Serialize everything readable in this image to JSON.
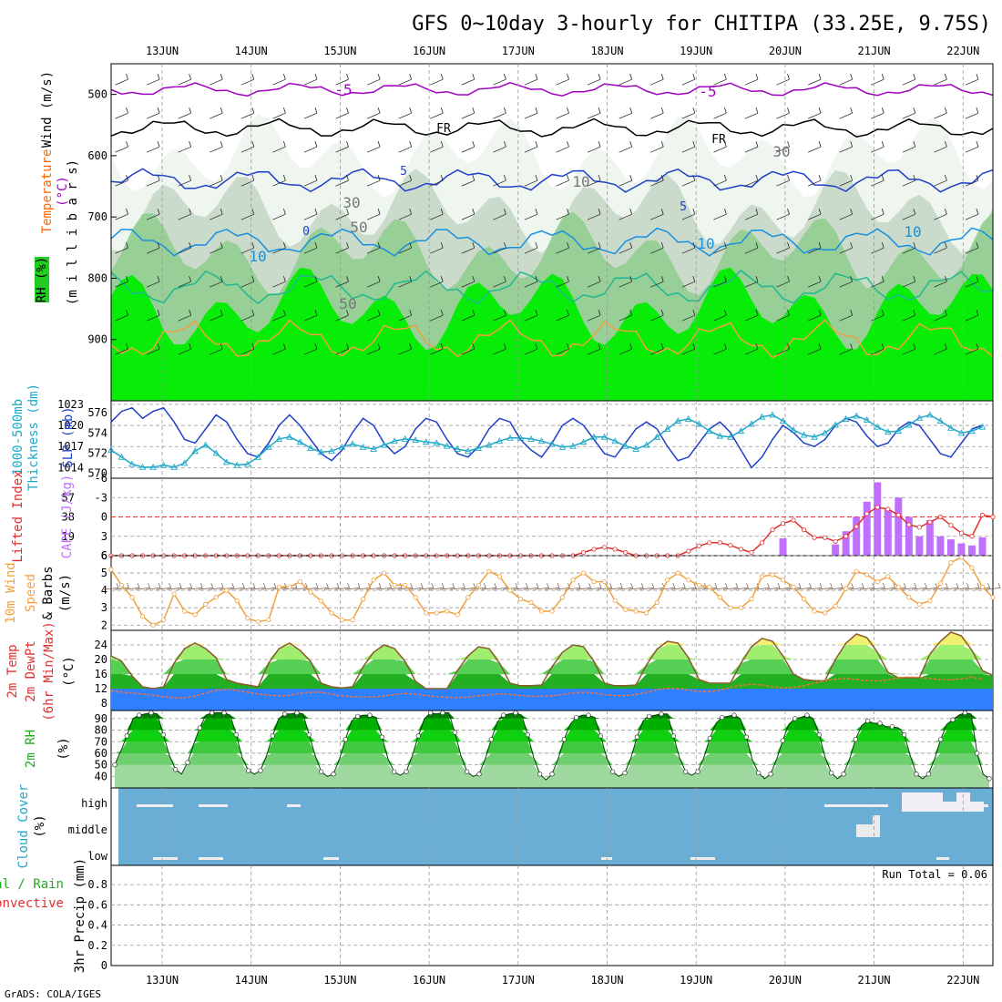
{
  "title": "GFS 0~10day 3-hourly for CHITIPA (33.25E, 9.75S)",
  "footer": "GrADS: COLA/IGES",
  "dates": [
    "13JUN",
    "14JUN",
    "15JUN",
    "16JUN",
    "17JUN",
    "18JUN",
    "19JUN",
    "20JUN",
    "21JUN",
    "22JUN"
  ],
  "colors": {
    "green": "#22aa22",
    "dkgreen": "#007a00",
    "ltgreen": "#00ff00",
    "blue": "#1e3fc8",
    "cyan": "#1ea8c8",
    "red": "#e03030",
    "orange": "#f0a040",
    "purple": "#a000c0",
    "magenta": "#c070ff",
    "cloud": "#6aaed6"
  },
  "chart_data": [
    {
      "type": "heatmap",
      "name": "upper_air",
      "ylabels": [
        {
          "text": "Wind (m/s)",
          "color": "#000000"
        },
        {
          "text": "Temperature",
          "color": "#ff6600"
        },
        {
          "text": "(°C)",
          "color": "#a000c0"
        },
        {
          "text": "(m i l l i b a r s)",
          "color": "#000000"
        },
        {
          "text": "RH (%)",
          "color": "#000000"
        }
      ],
      "yticks": [
        500,
        600,
        700,
        800,
        900
      ],
      "ylim": [
        1000,
        450
      ],
      "contour_labels": [
        "-5",
        "-5",
        "FR",
        "FR",
        "5",
        "5",
        "10",
        "10",
        "10",
        "0",
        "10",
        "30",
        "30",
        "50",
        "50"
      ]
    },
    {
      "type": "line",
      "name": "slp_thickness",
      "ylabels_left": [
        {
          "text": "1000-500mb",
          "color": "#1ea8c8"
        },
        {
          "text": "Thickness (dm)",
          "color": "#1ea8c8"
        }
      ],
      "ylabels_right": [
        {
          "text": "SLP (mb)",
          "color": "#1e3fc8"
        }
      ],
      "yticks_left": [
        570,
        572,
        574,
        576
      ],
      "yticks_right": [
        1014,
        1017,
        1020,
        1023
      ],
      "series": [
        {
          "name": "SLP (mb)",
          "axis": "right",
          "color": "#1e3fc8",
          "values": [
            1020.5,
            1022,
            1022.5,
            1021,
            1022,
            1022.5,
            1020.5,
            1018,
            1017.5,
            1019.5,
            1021.5,
            1020.5,
            1018,
            1016,
            1015.5,
            1017.5,
            1020,
            1021.5,
            1020,
            1018,
            1016,
            1015,
            1016.5,
            1019,
            1021,
            1020,
            1017.5,
            1016,
            1017,
            1019.5,
            1021,
            1020.5,
            1018,
            1016,
            1015.5,
            1017,
            1019.5,
            1021,
            1020.5,
            1018,
            1016.5,
            1015.5,
            1017.5,
            1020,
            1021,
            1020,
            1018,
            1016,
            1015.5,
            1017.5,
            1019.5,
            1020.5,
            1019.5,
            1017,
            1015,
            1015.5,
            1017.5,
            1019.5,
            1020.5,
            1019,
            1016.5,
            1014,
            1015.5,
            1018,
            1020,
            1019,
            1017.5,
            1017,
            1018,
            1020,
            1021,
            1020.5,
            1018.5,
            1017,
            1017.5,
            1019.5,
            1020.5,
            1020,
            1018,
            1016,
            1015.5,
            1017.5,
            1019.5,
            1020
          ]
        },
        {
          "name": "1000-500mb Thickness (dm)",
          "axis": "left",
          "color": "#1ea8c8",
          "values": [
            572.3,
            571.6,
            570.9,
            570.6,
            570.6,
            570.8,
            570.6,
            571,
            572.2,
            572.8,
            572,
            571.1,
            570.8,
            570.9,
            571.6,
            572.6,
            573.4,
            573.6,
            573.1,
            572.5,
            572.1,
            572.2,
            572.6,
            572.9,
            572.6,
            572.4,
            572.8,
            573.2,
            573.4,
            573.3,
            573.1,
            573,
            572.7,
            572.4,
            572.2,
            572.5,
            572.8,
            573.2,
            573.5,
            573.5,
            573.4,
            573.2,
            572.9,
            572.6,
            572.7,
            573.1,
            573.6,
            573.6,
            573.2,
            572.7,
            572.4,
            572.8,
            573.6,
            574.4,
            575.2,
            575.4,
            574.9,
            574.2,
            573.7,
            573.6,
            574.2,
            574.9,
            575.6,
            575.8,
            575.2,
            574.3,
            573.8,
            573.6,
            574,
            574.8,
            575.4,
            575.7,
            575.3,
            574.6,
            574.1,
            574.2,
            574.8,
            575.5,
            575.8,
            575.2,
            574.5,
            574,
            574.2,
            574.6
          ]
        }
      ]
    },
    {
      "type": "bar",
      "name": "cape_li",
      "ylabels_left": [
        {
          "text": "Lifted Index",
          "color": "#e03030"
        }
      ],
      "ylabels_right": [
        {
          "text": "CAPE (J/kg)",
          "color": "#c070ff"
        }
      ],
      "yticks_left": [
        "-6",
        "-3",
        "0",
        "3",
        "6"
      ],
      "yticks_right": [
        19,
        38,
        57
      ],
      "series": [
        {
          "name": "CAPE (J/kg)",
          "color": "#c070ff",
          "values": [
            0,
            0,
            0,
            0,
            0,
            0,
            0,
            0,
            0,
            0,
            0,
            0,
            0,
            0,
            0,
            0,
            0,
            0,
            0,
            0,
            0,
            0,
            0,
            0,
            0,
            0,
            0,
            0,
            0,
            0,
            0,
            0,
            0,
            0,
            0,
            0,
            0,
            0,
            0,
            0,
            0,
            0,
            0,
            0,
            0,
            0,
            0,
            0,
            0,
            0,
            0,
            0,
            0,
            0,
            0,
            0,
            0,
            0,
            0,
            0,
            0,
            0,
            0,
            0,
            17,
            0,
            0,
            0,
            0,
            11,
            24,
            38,
            53,
            72,
            45,
            57,
            38,
            19,
            35,
            19,
            16,
            12,
            10,
            18
          ]
        },
        {
          "name": "Lifted Index",
          "color": "#e03030",
          "values": [
            6,
            6,
            6,
            6,
            6,
            6,
            6,
            6,
            6,
            6,
            6,
            6,
            6,
            6,
            6,
            6,
            6,
            6,
            6,
            6,
            6,
            6,
            6,
            6,
            6,
            6,
            6,
            6,
            6,
            6,
            6,
            6,
            6,
            6,
            6,
            6,
            6,
            6,
            6,
            6,
            6,
            6,
            6,
            6,
            6,
            5.5,
            5,
            4.7,
            5,
            5.5,
            6,
            6,
            6,
            6,
            6,
            5.3,
            4.5,
            4,
            4,
            4.4,
            5,
            5.5,
            4,
            2,
            1,
            0.5,
            2,
            3.2,
            3.2,
            3.8,
            3,
            1.5,
            -0.5,
            -1.5,
            -1.2,
            -0.3,
            1.2,
            1.6,
            0.8,
            0,
            1.3,
            2.5,
            3,
            -0.3,
            0,
            1.2,
            3,
            4.5,
            6,
            5.5
          ]
        }
      ]
    },
    {
      "type": "line",
      "name": "wind10m",
      "ylabels_left": [
        {
          "text": "10m Wind",
          "color": "#f0a040"
        },
        {
          "text": "Speed",
          "color": "#f0a040"
        },
        {
          "text": "& Barbs",
          "color": "#000000"
        },
        {
          "text": "(m/s)",
          "color": "#000000"
        }
      ],
      "yticks": [
        2,
        3,
        4,
        5,
        6
      ],
      "ylim": [
        1.7,
        6
      ],
      "series": [
        {
          "name": "10m Wind Speed",
          "color": "#f0a040",
          "values": [
            5.2,
            4.3,
            3.6,
            2.5,
            2,
            2.3,
            3.8,
            2.8,
            2.6,
            3.2,
            3.6,
            4,
            3.4,
            2.4,
            2.2,
            2.3,
            4.2,
            4.2,
            4.5,
            3.9,
            3.4,
            2.7,
            2.3,
            2.3,
            3.5,
            4.6,
            5,
            4.3,
            4.3,
            3.6,
            2.7,
            2.7,
            2.8,
            2.6,
            3.6,
            4.3,
            5.1,
            4.8,
            4,
            3.5,
            3.3,
            2.8,
            2.8,
            3.6,
            4.6,
            5,
            4.5,
            4.5,
            3.4,
            2.9,
            2.8,
            2.7,
            3.3,
            4.6,
            5,
            4.6,
            4.3,
            4.2,
            3.6,
            3,
            3,
            3.5,
            4.8,
            4.9,
            4.6,
            4.2,
            3.5,
            2.8,
            2.7,
            3.1,
            4.1,
            5.1,
            4.9,
            4.5,
            4.8,
            4.2,
            3.6,
            3.2,
            3.4,
            4.4,
            5.6,
            5.9,
            5.3,
            4.2,
            3.6,
            2.5,
            2.1,
            5.4
          ]
        }
      ]
    },
    {
      "type": "area",
      "name": "temp2m",
      "ylabels_left": [
        {
          "text": "2m Temp",
          "color": "#e03030"
        },
        {
          "text": "2m DewPt",
          "color": "#e03030"
        },
        {
          "text": "(6hr Min/Max)",
          "color": "#e03030"
        },
        {
          "text": "(°C)",
          "color": "#000000"
        }
      ],
      "yticks": [
        8,
        12,
        16,
        20,
        24
      ],
      "series": [
        {
          "name": "2m Temp",
          "color": "#8b5a2b",
          "values": [
            21,
            19.5,
            15.5,
            12.5,
            12,
            12.5,
            19,
            23,
            24.5,
            23,
            20.5,
            14.5,
            13.5,
            13,
            12.5,
            19,
            23,
            24.5,
            22.5,
            19.5,
            13.5,
            12.5,
            12.2,
            12.5,
            18,
            22,
            24,
            23,
            19.5,
            14,
            12,
            12,
            12,
            17,
            21,
            23.5,
            23,
            19,
            13.5,
            12.8,
            12.8,
            13,
            18,
            22,
            24,
            23.5,
            19.5,
            13.5,
            12.8,
            12.8,
            13,
            18.5,
            22.8,
            25,
            24.5,
            20.5,
            14.5,
            13.5,
            13.5,
            13.5,
            19,
            23.5,
            25.8,
            25,
            21,
            16,
            14.5,
            14.2,
            14.2,
            20,
            24.5,
            27,
            26,
            22,
            16.5,
            15,
            15,
            15,
            21.5,
            25,
            27.5,
            26.5,
            22.5,
            17,
            15.5,
            14.5,
            14,
            20
          ]
        },
        {
          "name": "2m DewPt",
          "color": "#ff7030",
          "values": [
            11.5,
            11,
            10.8,
            10.5,
            10.2,
            9.8,
            9.5,
            9.5,
            10,
            10.8,
            11.5,
            11.8,
            11.5,
            11,
            10.5,
            10.2,
            10,
            10.2,
            10.7,
            11,
            11,
            10.5,
            10,
            9.8,
            9.7,
            9.7,
            10,
            10.4,
            10.7,
            10.5,
            10.1,
            9.8,
            9.6,
            9.5,
            9.7,
            10,
            10.3,
            10.6,
            10.4,
            10.1,
            9.9,
            9.9,
            10,
            10.4,
            10.8,
            11,
            10.8,
            10.4,
            10.1,
            10.1,
            10.4,
            11,
            11.7,
            12.1,
            12,
            11.6,
            11.2,
            11.2,
            11.6,
            12.3,
            12.9,
            13.2,
            13,
            12.5,
            12.2,
            12.3,
            12.8,
            13.5,
            14.2,
            14.6,
            14.8,
            14.5,
            14.2,
            14.1,
            14.4,
            15,
            15.2,
            15.1,
            14.8,
            14.5,
            14.4,
            14.7,
            15.2,
            14.5
          ]
        }
      ]
    },
    {
      "type": "area",
      "name": "rh2m",
      "ylabels_left": [
        {
          "text": "2m RH",
          "color": "#22aa22"
        },
        {
          "text": "(%)",
          "color": "#000000"
        }
      ],
      "yticks": [
        40,
        50,
        60,
        70,
        80,
        90
      ],
      "series": [
        {
          "name": "2m RH",
          "color": "#22aa22",
          "values": [
            50,
            62,
            75,
            90,
            93,
            94,
            95,
            94,
            76,
            58,
            46,
            42,
            52,
            68,
            82,
            93,
            95,
            95,
            95,
            93,
            76,
            56,
            45,
            42,
            45,
            58,
            75,
            90,
            94,
            94,
            95,
            94,
            76,
            58,
            44,
            40,
            42,
            55,
            72,
            88,
            92,
            93,
            93,
            91,
            74,
            55,
            44,
            41,
            44,
            58,
            75,
            90,
            95,
            94,
            95,
            95,
            78,
            58,
            44,
            40,
            42,
            55,
            72,
            87,
            93,
            94,
            95,
            93,
            76,
            56,
            42,
            37,
            42,
            55,
            72,
            85,
            91,
            93,
            93,
            91,
            75,
            56,
            44,
            40,
            43,
            56,
            74,
            88,
            92,
            93,
            94,
            94,
            75,
            56,
            44,
            41,
            44,
            56,
            73,
            86,
            91,
            92,
            93,
            90,
            74,
            54,
            43,
            38,
            42,
            55,
            71,
            85,
            90,
            91,
            93,
            90,
            76,
            56,
            43,
            38,
            42,
            55,
            72,
            84,
            88,
            86,
            86,
            83,
            83,
            82,
            76,
            58,
            42,
            38,
            42,
            55,
            72,
            85,
            89,
            93,
            95,
            94,
            60,
            42,
            38
          ]
        }
      ]
    },
    {
      "type": "heatmap",
      "name": "cloud_cover",
      "ylabels_left": [
        {
          "text": "Cloud Cover",
          "color": "#1ea8c8"
        },
        {
          "text": "(%)",
          "color": "#000000"
        }
      ],
      "categories": [
        "high",
        "middle",
        "low"
      ]
    },
    {
      "type": "line",
      "name": "precip",
      "ylabels_left": [
        {
          "text": "Total / Rain",
          "color": "#22aa22"
        },
        {
          "text": "Convective",
          "color": "#e03030"
        },
        {
          "text": "3hr Precip (mm)",
          "color": "#000000"
        }
      ],
      "yticks": [
        "0",
        "0.2",
        "0.4",
        "0.6",
        "0.8"
      ],
      "ylim": [
        0,
        1
      ],
      "run_total": "Run Total = 0.06",
      "series": [
        {
          "name": "Total / Rain",
          "values": []
        }
      ]
    }
  ]
}
